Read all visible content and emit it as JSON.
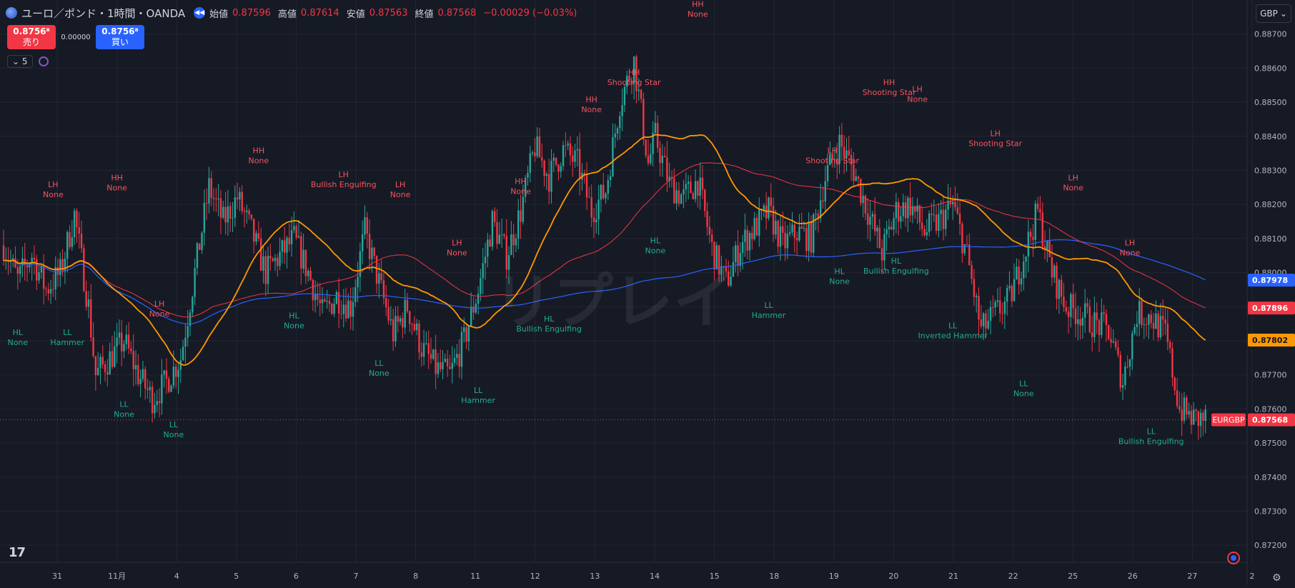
{
  "header": {
    "symbol_title": "ユーロ／ポンド・1時間・OANDA",
    "open_label": "始値",
    "open_value": "0.87596",
    "high_label": "高値",
    "high_value": "0.87614",
    "low_label": "安値",
    "low_value": "0.87563",
    "close_label": "終値",
    "close_value": "0.87568",
    "change": "−0.00029 (−0.03%)"
  },
  "trade": {
    "sell_price": "0.8756⁸",
    "sell_label": "売り",
    "spread": "0.00000",
    "buy_price": "0.8756⁸",
    "buy_label": "買い"
  },
  "indicator": {
    "count": "5"
  },
  "currency": "GBP",
  "watermark": "リプレイ",
  "colors": {
    "background": "#161a25",
    "up": "#26a69a",
    "down": "#f23645",
    "ma_fast": "#ff9800",
    "ma_mid": "#f23645",
    "ma_slow": "#2962ff",
    "label_high": "#f7525f",
    "label_low": "#22ab94"
  },
  "chart_data": {
    "type": "candlestick",
    "symbol": "EURGBP",
    "timeframe": "1時間",
    "y_range": [
      0.8715,
      0.888
    ],
    "y_ticks": [
      "0.87200",
      "0.87300",
      "0.87400",
      "0.87500",
      "0.87600",
      "0.87700",
      "0.87800",
      "0.87900",
      "0.88000",
      "0.88100",
      "0.88200",
      "0.88300",
      "0.88400",
      "0.88500",
      "0.88600",
      "0.88700"
    ],
    "x_ticks": [
      "31",
      "11月",
      "4",
      "5",
      "6",
      "7",
      "8",
      "11",
      "12",
      "13",
      "14",
      "15",
      "18",
      "19",
      "20",
      "21",
      "22",
      "25",
      "26",
      "27",
      "2"
    ],
    "last_price": "0.87568",
    "series_values": {
      "ma_slow": "0.87978",
      "ma_mid": "0.87896",
      "ma_fast": "0.87802"
    },
    "price_path": [
      [
        0,
        0.8808
      ],
      [
        2,
        0.8798
      ],
      [
        4,
        0.8805
      ],
      [
        6,
        0.8795
      ],
      [
        8,
        0.88
      ],
      [
        10,
        0.8817
      ],
      [
        12,
        0.879
      ],
      [
        13,
        0.877
      ],
      [
        15,
        0.8775
      ],
      [
        17,
        0.878
      ],
      [
        19,
        0.877
      ],
      [
        21,
        0.8763
      ],
      [
        23,
        0.8768
      ],
      [
        25,
        0.8775
      ],
      [
        27,
        0.88
      ],
      [
        29,
        0.8825
      ],
      [
        31,
        0.8815
      ],
      [
        33,
        0.8822
      ],
      [
        35,
        0.8812
      ],
      [
        37,
        0.88
      ],
      [
        39,
        0.8805
      ],
      [
        41,
        0.881
      ],
      [
        43,
        0.88
      ],
      [
        45,
        0.8788
      ],
      [
        47,
        0.8793
      ],
      [
        49,
        0.879
      ],
      [
        51,
        0.8812
      ],
      [
        53,
        0.8797
      ],
      [
        55,
        0.8782
      ],
      [
        57,
        0.879
      ],
      [
        59,
        0.8778
      ],
      [
        61,
        0.8772
      ],
      [
        63,
        0.877
      ],
      [
        65,
        0.878
      ],
      [
        67,
        0.8795
      ],
      [
        69,
        0.8815
      ],
      [
        71,
        0.8805
      ],
      [
        73,
        0.8818
      ],
      [
        75,
        0.8837
      ],
      [
        77,
        0.8828
      ],
      [
        79,
        0.8836
      ],
      [
        81,
        0.8832
      ],
      [
        83,
        0.8818
      ],
      [
        85,
        0.8824
      ],
      [
        87,
        0.885
      ],
      [
        89,
        0.8862
      ],
      [
        91,
        0.8832
      ],
      [
        92,
        0.884
      ],
      [
        94,
        0.8826
      ],
      [
        96,
        0.8822
      ],
      [
        98,
        0.8827
      ],
      [
        100,
        0.8807
      ],
      [
        102,
        0.8797
      ],
      [
        104,
        0.8808
      ],
      [
        106,
        0.8813
      ],
      [
        108,
        0.8818
      ],
      [
        110,
        0.8808
      ],
      [
        112,
        0.8812
      ],
      [
        114,
        0.881
      ],
      [
        116,
        0.8828
      ],
      [
        118,
        0.8838
      ],
      [
        120,
        0.883
      ],
      [
        122,
        0.8818
      ],
      [
        124,
        0.8806
      ],
      [
        126,
        0.8818
      ],
      [
        128,
        0.882
      ],
      [
        130,
        0.8812
      ],
      [
        132,
        0.8815
      ],
      [
        134,
        0.882
      ],
      [
        136,
        0.8805
      ],
      [
        138,
        0.8783
      ],
      [
        140,
        0.8788
      ],
      [
        142,
        0.8792
      ],
      [
        144,
        0.8805
      ],
      [
        146,
        0.8818
      ],
      [
        148,
        0.88
      ],
      [
        150,
        0.879
      ],
      [
        152,
        0.8788
      ],
      [
        154,
        0.8785
      ],
      [
        156,
        0.8783
      ],
      [
        158,
        0.8768
      ],
      [
        160,
        0.8788
      ],
      [
        162,
        0.8787
      ],
      [
        164,
        0.8782
      ],
      [
        166,
        0.876
      ],
      [
        168,
        0.8757
      ]
    ],
    "swing_labels": [
      {
        "t": 7,
        "p": 0.882,
        "kind": "high",
        "line1": "LH",
        "line2": "None"
      },
      {
        "t": 2,
        "p": 0.8785,
        "kind": "low",
        "line1": "HL",
        "line2": "None"
      },
      {
        "t": 9,
        "p": 0.8785,
        "kind": "low",
        "line1": "LL",
        "line2": "Hammer"
      },
      {
        "t": 16,
        "p": 0.8822,
        "kind": "high",
        "line1": "HH",
        "line2": "None"
      },
      {
        "t": 17,
        "p": 0.8764,
        "kind": "low",
        "line1": "LL",
        "line2": "None"
      },
      {
        "t": 22,
        "p": 0.8785,
        "kind": "high",
        "line1": "LH",
        "line2": "None"
      },
      {
        "t": 24,
        "p": 0.8758,
        "kind": "low",
        "line1": "LL",
        "line2": "None"
      },
      {
        "t": 36,
        "p": 0.883,
        "kind": "high",
        "line1": "HH",
        "line2": "None"
      },
      {
        "t": 41,
        "p": 0.879,
        "kind": "low",
        "line1": "HL",
        "line2": "None"
      },
      {
        "t": 48,
        "p": 0.8823,
        "kind": "high",
        "line1": "LH",
        "line2": "Bullish Engulfing"
      },
      {
        "t": 56,
        "p": 0.882,
        "kind": "high",
        "line1": "LH",
        "line2": "None"
      },
      {
        "t": 53,
        "p": 0.8776,
        "kind": "low",
        "line1": "LL",
        "line2": "None"
      },
      {
        "t": 64,
        "p": 0.8803,
        "kind": "high",
        "line1": "LH",
        "line2": "None"
      },
      {
        "t": 67,
        "p": 0.8768,
        "kind": "low",
        "line1": "LL",
        "line2": "Hammer"
      },
      {
        "t": 73,
        "p": 0.8821,
        "kind": "high",
        "line1": "HH",
        "line2": "None"
      },
      {
        "t": 77,
        "p": 0.8789,
        "kind": "low",
        "line1": "HL",
        "line2": "Bullish Engulfing"
      },
      {
        "t": 83,
        "p": 0.8845,
        "kind": "high",
        "line1": "HH",
        "line2": "None"
      },
      {
        "t": 89,
        "p": 0.8853,
        "kind": "high",
        "line1": "HH",
        "line2": "Shooting Star"
      },
      {
        "t": 92,
        "p": 0.8812,
        "kind": "low",
        "line1": "HL",
        "line2": "None"
      },
      {
        "t": 98,
        "p": 0.8873,
        "kind": "high",
        "line1": "HH",
        "line2": "None"
      },
      {
        "t": 108,
        "p": 0.8793,
        "kind": "low",
        "line1": "LL",
        "line2": "Hammer"
      },
      {
        "t": 117,
        "p": 0.883,
        "kind": "high",
        "line1": "LH",
        "line2": "Shooting Star"
      },
      {
        "t": 118,
        "p": 0.8803,
        "kind": "low",
        "line1": "HL",
        "line2": "None"
      },
      {
        "t": 125,
        "p": 0.885,
        "kind": "high",
        "line1": "HH",
        "line2": "Shooting Star"
      },
      {
        "t": 126,
        "p": 0.8806,
        "kind": "low",
        "line1": "HL",
        "line2": "Bullish Engulfing"
      },
      {
        "t": 129,
        "p": 0.8848,
        "kind": "high",
        "line1": "LH",
        "line2": "None"
      },
      {
        "t": 134,
        "p": 0.8787,
        "kind": "low",
        "line1": "LL",
        "line2": "Inverted Hammer"
      },
      {
        "t": 140,
        "p": 0.8835,
        "kind": "high",
        "line1": "LH",
        "line2": "Shooting Star"
      },
      {
        "t": 144,
        "p": 0.877,
        "kind": "low",
        "line1": "LL",
        "line2": "None"
      },
      {
        "t": 151,
        "p": 0.8822,
        "kind": "high",
        "line1": "LH",
        "line2": "None"
      },
      {
        "t": 159,
        "p": 0.8803,
        "kind": "high",
        "line1": "LH",
        "line2": "None"
      },
      {
        "t": 162,
        "p": 0.8756,
        "kind": "low",
        "line1": "LL",
        "line2": "Bullish Engulfing"
      }
    ]
  }
}
